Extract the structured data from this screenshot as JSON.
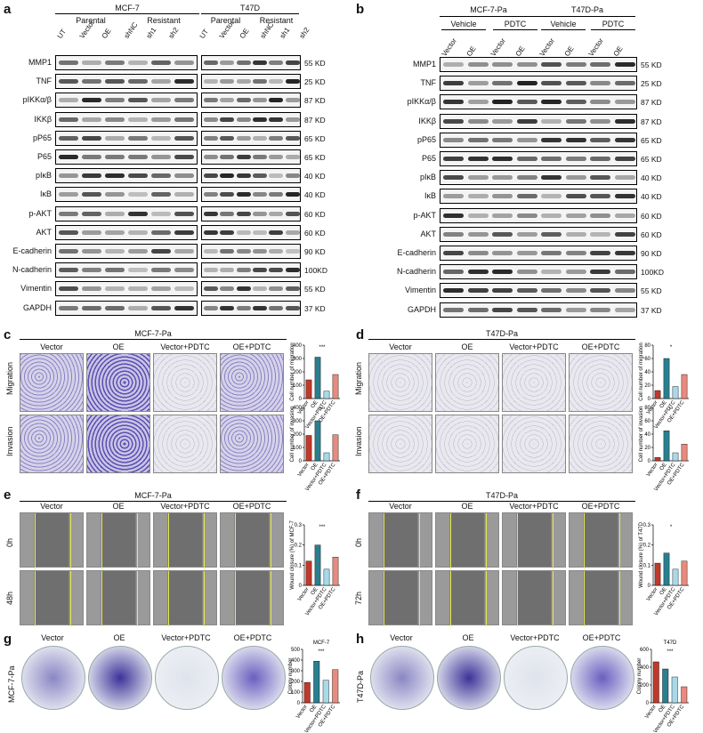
{
  "panels": {
    "a": "a",
    "b": "b",
    "c": "c",
    "d": "d",
    "e": "e",
    "f": "f",
    "g": "g",
    "h": "h"
  },
  "panel_a": {
    "group1": "MCF-7",
    "group2": "T47D",
    "sub_parental": "Parental",
    "sub_resistant": "Resistant",
    "lanes": [
      "UT",
      "Vector",
      "OE",
      "shNC",
      "sh1",
      "sh2"
    ],
    "rows": [
      "MMP1",
      "TNF",
      "pIKKα/β",
      "IKKβ",
      "pP65",
      "P65",
      "pIκB",
      "IκB",
      "p-AKT",
      "AKT",
      "E-cadherin",
      "N-cadherin",
      "Vimentin",
      "GAPDH"
    ],
    "sizes": [
      "55 KD",
      "25 KD",
      "87 KD",
      "87 KD",
      "65 KD",
      "65 KD",
      "40 KD",
      "40 KD",
      "60 KD",
      "60 KD",
      "90 KD",
      "100KD",
      "55 KD",
      "37 KD"
    ]
  },
  "panel_b": {
    "group1": "MCF-7-Pa",
    "group2": "T47D-Pa",
    "sub": [
      "Vehicle",
      "PDTC",
      "Vehicle",
      "PDTC"
    ],
    "lanes": [
      "Vector",
      "OE",
      "Vector",
      "OE",
      "Vector",
      "OE",
      "Vector",
      "OE"
    ]
  },
  "panel_c": {
    "title": "MCF-7-Pa",
    "cols": [
      "Vector",
      "OE",
      "Vector+PDTC",
      "OE+PDTC"
    ],
    "rows": [
      "Migration",
      "Invasion"
    ],
    "ylabel_top": "Cell number of migration",
    "ylabel_bottom": "Cell number of invasion"
  },
  "panel_d": {
    "title": "T47D-Pa",
    "cols": [
      "Vector",
      "OE",
      "Vector+PDTC",
      "OE+PDTC"
    ],
    "rows": [
      "Migration",
      "Invasion"
    ],
    "ylabel_top": "Cell number of migration",
    "ylabel_bottom": "Cell number of invasion"
  },
  "panel_e": {
    "title": "MCF-7-Pa",
    "cols": [
      "Vector",
      "OE",
      "Vector+PDTC",
      "OE+PDTC"
    ],
    "rows": [
      "0h",
      "48h"
    ],
    "ylabel": "Wound closure (%) of MCF-7"
  },
  "panel_f": {
    "title": "T47D-Pa",
    "cols": [
      "Vector",
      "OE",
      "Vector+PDTC",
      "OE+PDTC"
    ],
    "rows": [
      "0h",
      "72h"
    ],
    "ylabel": "Wound closure (%) of T47D"
  },
  "panel_g": {
    "cols": [
      "Vector",
      "OE",
      "Vector+PDTC",
      "OE+PDTC"
    ],
    "side": "MCF-7-Pa",
    "chart_title": "MCF-7",
    "ylabel": "Colony number"
  },
  "panel_h": {
    "cols": [
      "Vector",
      "OE",
      "Vector+PDTC",
      "OE+PDTC"
    ],
    "side": "T47D-Pa",
    "chart_title": "T47D",
    "ylabel": "Colony number"
  },
  "sig": {
    "three": "***",
    "two": "**",
    "one": "*"
  },
  "chart_data": [
    {
      "id": "c-migration",
      "type": "bar",
      "categories": [
        "Vector",
        "OE",
        "Vector+PDTC",
        "OE+PDTC"
      ],
      "values": [
        140,
        310,
        55,
        180
      ],
      "ylabel": "Cell number of migration",
      "ylim": [
        0,
        400
      ],
      "ticks": [
        0,
        100,
        200,
        300,
        400
      ]
    },
    {
      "id": "c-invasion",
      "type": "bar",
      "categories": [
        "Vector",
        "OE",
        "Vector+PDTC",
        "OE+PDTC"
      ],
      "values": [
        190,
        300,
        60,
        195
      ],
      "ylabel": "Cell number of invasion",
      "ylim": [
        0,
        400
      ],
      "ticks": [
        0,
        100,
        200,
        300,
        400
      ]
    },
    {
      "id": "d-migration",
      "type": "bar",
      "categories": [
        "Vector",
        "OE",
        "Vector+PDTC",
        "OE+PDTC"
      ],
      "values": [
        12,
        60,
        18,
        36
      ],
      "ylabel": "Cell number of migration",
      "ylim": [
        0,
        80
      ],
      "ticks": [
        0,
        20,
        40,
        60,
        80
      ]
    },
    {
      "id": "d-invasion",
      "type": "bar",
      "categories": [
        "Vector",
        "OE",
        "Vector+PDTC",
        "OE+PDTC"
      ],
      "values": [
        5,
        45,
        12,
        25
      ],
      "ylabel": "Cell number of invasion",
      "ylim": [
        0,
        80
      ],
      "ticks": [
        0,
        20,
        40,
        60,
        80
      ]
    },
    {
      "id": "e-wound",
      "type": "bar",
      "categories": [
        "Vector",
        "OE",
        "Vector+PDTC",
        "OE+PDTC"
      ],
      "values": [
        0.12,
        0.2,
        0.08,
        0.14
      ],
      "ylabel": "Wound closure (%) of MCF-7",
      "ylim": [
        0,
        0.3
      ],
      "ticks": [
        0.0,
        0.1,
        0.2,
        0.3
      ]
    },
    {
      "id": "f-wound",
      "type": "bar",
      "categories": [
        "Vector",
        "OE",
        "Vector+PDTC",
        "OE+PDTC"
      ],
      "values": [
        0.11,
        0.16,
        0.08,
        0.12
      ],
      "ylabel": "Wound closure (%) of T47D",
      "ylim": [
        0,
        0.3
      ],
      "ticks": [
        0.0,
        0.1,
        0.2,
        0.3
      ]
    },
    {
      "id": "g-colony",
      "type": "bar",
      "categories": [
        "Vector",
        "OE",
        "Vector+PDTC",
        "OE+PDTC"
      ],
      "values": [
        190,
        390,
        210,
        310
      ],
      "title": "MCF-7",
      "ylabel": "Colony number",
      "ylim": [
        0,
        500
      ],
      "ticks": [
        0,
        100,
        200,
        300,
        400,
        500
      ]
    },
    {
      "id": "h-colony",
      "type": "bar",
      "categories": [
        "Vector",
        "OE",
        "Vector+PDTC",
        "OE+PDTC"
      ],
      "values": [
        460,
        380,
        290,
        180
      ],
      "title": "T47D",
      "ylabel": "Colony number",
      "ylim": [
        0,
        600
      ],
      "ticks": [
        0,
        200,
        400,
        600
      ]
    }
  ],
  "colors": {
    "vector": "#c0392b",
    "oe": "#2a7f8f",
    "vpdtc": "#a9d9e8",
    "oepdtc": "#e88b7f"
  }
}
